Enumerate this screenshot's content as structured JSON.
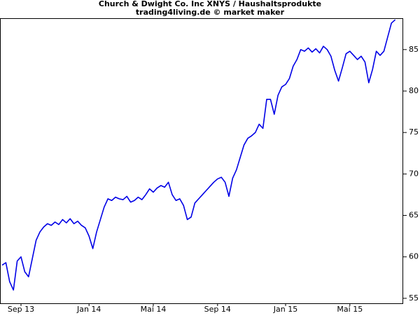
{
  "chart_data": {
    "type": "line",
    "title": "Church & Dwight Co. Inc XNYS / Haushaltsprodukte",
    "subtitle": "trading4living.de © market maker",
    "categories": [
      null,
      null,
      null,
      null,
      null,
      "Sep 13",
      null,
      null,
      null,
      null,
      null,
      null,
      null,
      null,
      null,
      null,
      null,
      null,
      null,
      null,
      null,
      null,
      null,
      "Jan 14",
      null,
      null,
      null,
      null,
      null,
      null,
      null,
      null,
      null,
      null,
      null,
      null,
      null,
      null,
      null,
      null,
      "Mai 14",
      null,
      null,
      null,
      null,
      null,
      null,
      null,
      null,
      null,
      null,
      null,
      null,
      null,
      null,
      null,
      null,
      "Sep 14",
      null,
      null,
      null,
      null,
      null,
      null,
      null,
      null,
      null,
      null,
      null,
      null,
      null,
      null,
      null,
      null,
      null,
      "Jan 15",
      null,
      null,
      null,
      null,
      null,
      null,
      null,
      null,
      null,
      null,
      null,
      null,
      null,
      null,
      null,
      null,
      "Mai 15",
      null,
      null,
      null,
      null,
      null,
      null,
      null,
      null,
      null,
      null,
      null,
      null
    ],
    "series": [
      {
        "color": "#0000e6",
        "values": [
          59,
          59.3,
          57,
          56,
          59.5,
          60,
          58.2,
          57.6,
          59.8,
          62,
          63,
          63.6,
          64,
          63.8,
          64.2,
          63.9,
          64.5,
          64.1,
          64.6,
          64,
          64.3,
          63.8,
          63.5,
          62.5,
          61,
          63,
          64.5,
          66,
          67,
          66.8,
          67.2,
          67,
          66.9,
          67.3,
          66.6,
          66.8,
          67.2,
          66.9,
          67.5,
          68.2,
          67.8,
          68.3,
          68.6,
          68.4,
          69,
          67.5,
          66.8,
          67,
          66.2,
          64.5,
          64.8,
          66.5,
          67,
          67.5,
          68,
          68.5,
          69,
          69.4,
          69.6,
          69,
          67.3,
          69.5,
          70.5,
          72,
          73.5,
          74.3,
          74.6,
          75,
          76,
          75.5,
          79,
          79,
          77.2,
          79.5,
          80.5,
          80.8,
          81.5,
          83,
          83.8,
          85,
          84.8,
          85.2,
          84.7,
          85.1,
          84.6,
          85.4,
          85,
          84.2,
          82.5,
          81.2,
          82.8,
          84.5,
          84.8,
          84.3,
          83.8,
          84.2,
          83.5,
          81,
          82.6,
          84.8,
          84.3,
          84.8,
          86.5,
          88.2,
          88.6
        ]
      }
    ],
    "ylim": [
      54.4,
      88.7
    ],
    "yticks": [
      55,
      60,
      65,
      70,
      75,
      80,
      85
    ]
  }
}
